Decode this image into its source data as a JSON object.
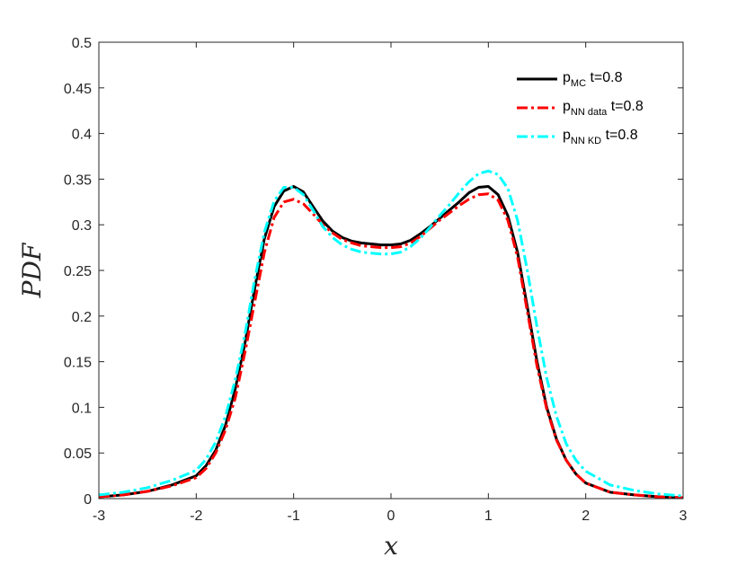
{
  "chart_data": {
    "type": "line",
    "xlabel": "x",
    "ylabel": "PDF",
    "xlim": [
      -3,
      3
    ],
    "ylim": [
      0,
      0.5
    ],
    "xticks": [
      "-3",
      "-2",
      "-1",
      "0",
      "1",
      "2",
      "3"
    ],
    "yticks": [
      "0",
      "0.05",
      "0.1",
      "0.15",
      "0.2",
      "0.25",
      "0.3",
      "0.35",
      "0.4",
      "0.45",
      "0.5"
    ],
    "grid": false,
    "legend_position": "top-right",
    "series": [
      {
        "name": "p_MC t=0.8",
        "label_main": "p",
        "label_sub": "MC",
        "label_tail": " t=0.8",
        "color": "#000000",
        "style": "solid",
        "x": [
          -3,
          -2.75,
          -2.5,
          -2.25,
          -2.0,
          -1.9,
          -1.8,
          -1.7,
          -1.6,
          -1.5,
          -1.4,
          -1.3,
          -1.2,
          -1.1,
          -1.0,
          -0.9,
          -0.8,
          -0.7,
          -0.6,
          -0.5,
          -0.4,
          -0.3,
          -0.2,
          -0.1,
          0.0,
          0.1,
          0.2,
          0.3,
          0.4,
          0.5,
          0.6,
          0.7,
          0.8,
          0.9,
          1.0,
          1.1,
          1.2,
          1.3,
          1.4,
          1.5,
          1.6,
          1.7,
          1.8,
          1.9,
          2.0,
          2.25,
          2.5,
          2.75,
          3.0
        ],
        "y": [
          0.002,
          0.004,
          0.008,
          0.015,
          0.025,
          0.036,
          0.053,
          0.08,
          0.12,
          0.17,
          0.23,
          0.285,
          0.32,
          0.337,
          0.342,
          0.336,
          0.32,
          0.304,
          0.293,
          0.286,
          0.282,
          0.28,
          0.279,
          0.278,
          0.278,
          0.279,
          0.283,
          0.29,
          0.298,
          0.307,
          0.316,
          0.325,
          0.335,
          0.341,
          0.342,
          0.333,
          0.31,
          0.27,
          0.21,
          0.15,
          0.1,
          0.065,
          0.042,
          0.027,
          0.017,
          0.007,
          0.004,
          0.002,
          0.001
        ]
      },
      {
        "name": "p_NN data t=0.8",
        "label_main": "p",
        "label_sub": "NN data",
        "label_tail": " t=0.8",
        "color": "#ff0000",
        "style": "dashdot",
        "x": [
          -3,
          -2.75,
          -2.5,
          -2.25,
          -2.0,
          -1.9,
          -1.8,
          -1.7,
          -1.6,
          -1.5,
          -1.4,
          -1.3,
          -1.2,
          -1.1,
          -1.0,
          -0.9,
          -0.8,
          -0.7,
          -0.6,
          -0.5,
          -0.4,
          -0.3,
          -0.2,
          -0.1,
          0.0,
          0.1,
          0.2,
          0.3,
          0.4,
          0.5,
          0.6,
          0.7,
          0.8,
          0.9,
          1.0,
          1.1,
          1.2,
          1.3,
          1.4,
          1.5,
          1.6,
          1.7,
          1.8,
          1.9,
          2.0,
          2.25,
          2.5,
          2.75,
          3.0
        ],
        "y": [
          0.002,
          0.004,
          0.008,
          0.014,
          0.023,
          0.033,
          0.05,
          0.075,
          0.11,
          0.16,
          0.215,
          0.27,
          0.308,
          0.325,
          0.328,
          0.323,
          0.312,
          0.3,
          0.291,
          0.284,
          0.28,
          0.277,
          0.276,
          0.275,
          0.275,
          0.276,
          0.28,
          0.287,
          0.296,
          0.305,
          0.313,
          0.321,
          0.328,
          0.333,
          0.334,
          0.327,
          0.305,
          0.265,
          0.205,
          0.145,
          0.098,
          0.064,
          0.042,
          0.027,
          0.017,
          0.007,
          0.004,
          0.002,
          0.001
        ]
      },
      {
        "name": "p_NN KD t=0.8",
        "label_main": "p",
        "label_sub": "NN KD",
        "label_tail": " t=0.8",
        "color": "#00ffff",
        "style": "dashdot",
        "x": [
          -3,
          -2.75,
          -2.5,
          -2.25,
          -2.0,
          -1.9,
          -1.8,
          -1.7,
          -1.6,
          -1.5,
          -1.4,
          -1.3,
          -1.2,
          -1.1,
          -1.0,
          -0.9,
          -0.8,
          -0.7,
          -0.6,
          -0.5,
          -0.4,
          -0.3,
          -0.2,
          -0.1,
          0.0,
          0.1,
          0.2,
          0.3,
          0.4,
          0.5,
          0.6,
          0.7,
          0.8,
          0.9,
          1.0,
          1.1,
          1.2,
          1.3,
          1.4,
          1.5,
          1.6,
          1.7,
          1.8,
          1.9,
          2.0,
          2.25,
          2.5,
          2.75,
          3.0
        ],
        "y": [
          0.004,
          0.007,
          0.012,
          0.02,
          0.031,
          0.043,
          0.062,
          0.09,
          0.13,
          0.18,
          0.24,
          0.292,
          0.326,
          0.341,
          0.341,
          0.333,
          0.316,
          0.298,
          0.286,
          0.278,
          0.273,
          0.27,
          0.269,
          0.268,
          0.268,
          0.27,
          0.276,
          0.285,
          0.297,
          0.31,
          0.322,
          0.335,
          0.347,
          0.356,
          0.359,
          0.355,
          0.34,
          0.305,
          0.25,
          0.188,
          0.132,
          0.09,
          0.06,
          0.042,
          0.03,
          0.015,
          0.009,
          0.005,
          0.003
        ]
      }
    ]
  }
}
